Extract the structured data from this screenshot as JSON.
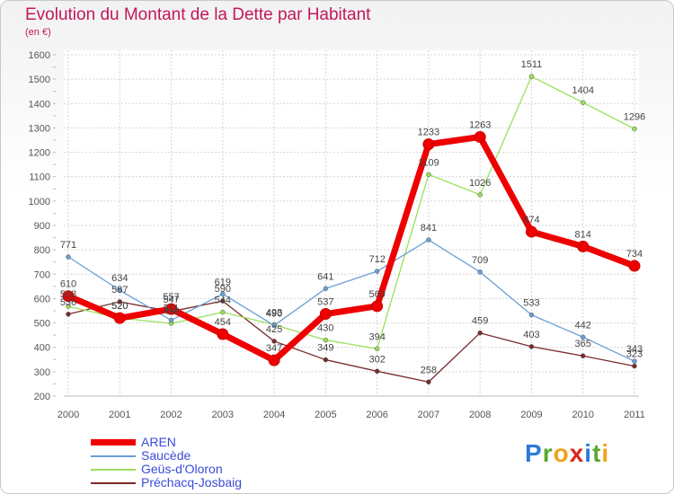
{
  "title": "Evolution du Montant de la Dette par Habitant",
  "subtitle": "(en €)",
  "brand": {
    "letters": [
      "P",
      "r",
      "o",
      "x",
      "i",
      "t",
      "i"
    ],
    "colors": [
      "#2e7bd6",
      "#5aa832",
      "#f0a21b",
      "#d9261c",
      "#2e7bd6",
      "#5aa832",
      "#f0a21b"
    ]
  },
  "chart_data": {
    "type": "line",
    "title": "Evolution du Montant de la Dette par Habitant",
    "ylabel": "(en €)",
    "x": [
      "2000",
      "2001",
      "2002",
      "2003",
      "2004",
      "2005",
      "2006",
      "2007",
      "2008",
      "2009",
      "2010",
      "2011"
    ],
    "ylim": [
      200,
      1600
    ],
    "yticks": [
      200,
      300,
      400,
      500,
      600,
      700,
      800,
      900,
      1000,
      1100,
      1200,
      1300,
      1400,
      1500,
      1600
    ],
    "grid": true,
    "legend_position": "bottom-left",
    "series": [
      {
        "name": "Préchacq-Josbaig",
        "color": "#7a2a2a",
        "width": 1.3,
        "marker": 2.5,
        "values": [
          536,
          587,
          547,
          590,
          425,
          349,
          302,
          258,
          459,
          403,
          365,
          323
        ]
      },
      {
        "name": "Geüs-d'Oloron",
        "color": "#99e05a",
        "width": 1.3,
        "marker": 2.5,
        "values": [
          568,
          520,
          498,
          544,
          493,
          430,
          394,
          1109,
          1026,
          1511,
          1404,
          1296
        ]
      },
      {
        "name": "Saucède",
        "color": "#6aa0d8",
        "width": 1.3,
        "marker": 2.5,
        "values": [
          771,
          634,
          511,
          619,
          490,
          641,
          712,
          841,
          709,
          533,
          442,
          343
        ]
      },
      {
        "name": "AREN",
        "color": "#ee0000",
        "width": 7,
        "marker": 6,
        "values": [
          610,
          520,
          557,
          454,
          347,
          537,
          569,
          1233,
          1263,
          874,
          814,
          734
        ]
      }
    ]
  }
}
